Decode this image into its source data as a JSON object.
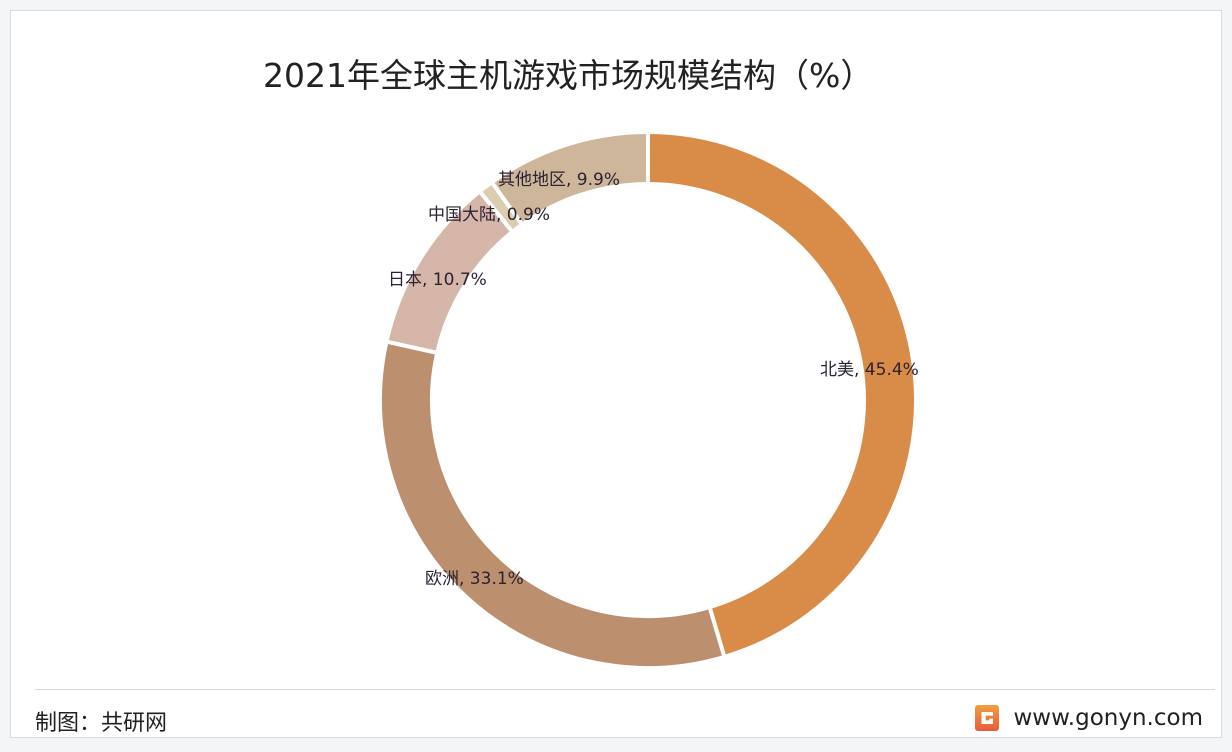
{
  "chart_data": {
    "type": "pie",
    "variant": "donut",
    "title": "2021年全球主机游戏市场规模结构（%）",
    "unit": "%",
    "categories": [
      "北美",
      "欧洲",
      "日本",
      "中国大陆",
      "其他地区"
    ],
    "values": [
      45.4,
      33.1,
      10.7,
      0.9,
      9.9
    ],
    "labels": [
      "北美, 45.4%",
      "欧洲, 33.1%",
      "日本, 10.7%",
      "中国大陆, 0.9%",
      "其他地区, 9.9%"
    ],
    "colors": [
      "#D98C48",
      "#BC8F6F",
      "#D6B6A8",
      "#DCCDB0",
      "#CDB699"
    ],
    "start": "12 o'clock, clockwise",
    "legend": "none"
  },
  "footer": {
    "source": "制图：共研网",
    "website": "www.gonyn.com"
  },
  "watermark": "共研网 www.gonyn.com"
}
